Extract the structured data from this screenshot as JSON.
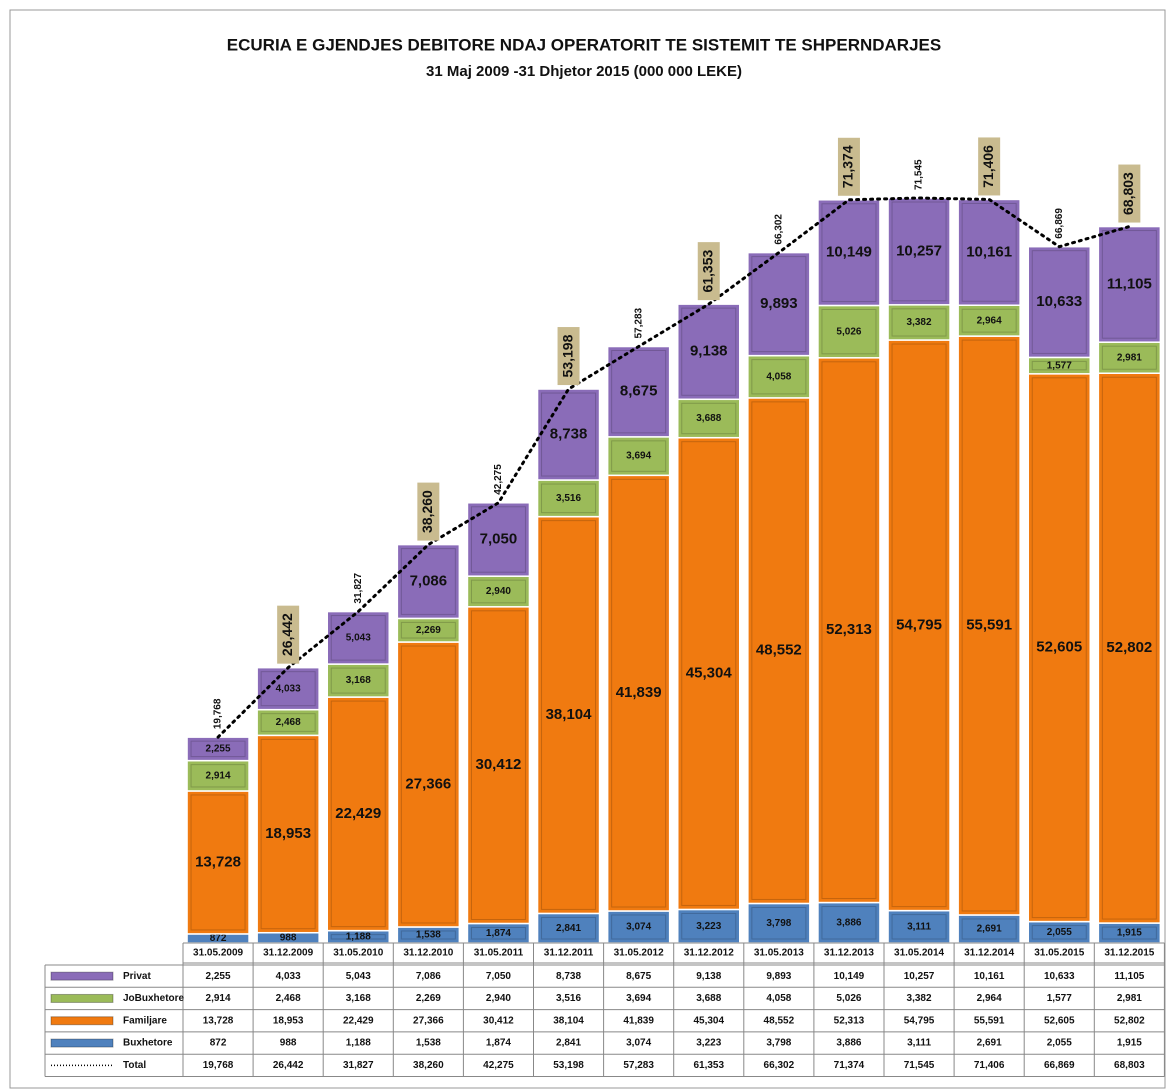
{
  "chart_data": {
    "type": "bar",
    "title": "ECURIA E GJENDJES DEBITORE NDAJ  OPERATORIT TE SISTEMIT TE SHPERNDARJES",
    "subtitle": "31 Maj 2009 -31 Dhjetor 2015    (000 000 LEKE)",
    "stacked": true,
    "categories": [
      "31.05.2009",
      "31.12.2009",
      "31.05.2010",
      "31.12.2010",
      "31.05.2011",
      "31.12.2011",
      "31.05.2012",
      "31.12.2012",
      "31.05.2013",
      "31.12.2013",
      "31.05.2014",
      "31.12.2014",
      "31.05.2015",
      "31.12.2015"
    ],
    "series": [
      {
        "name": "Privat",
        "color": "#8a6cb8",
        "values": [
          2255,
          4033,
          5043,
          7086,
          7050,
          8738,
          8675,
          9138,
          9893,
          10149,
          10257,
          10161,
          10633,
          11105
        ],
        "value_labels": [
          "2,255",
          "4,033",
          "5,043",
          "7,086",
          "7,050",
          "8,738",
          "8,675",
          "9,138",
          "9,893",
          "10,149",
          "10,257",
          "10,161",
          "10,633",
          "11,105"
        ]
      },
      {
        "name": "JoBuxhetore",
        "color": "#9bbb59",
        "values": [
          2914,
          2468,
          3168,
          2269,
          2940,
          3516,
          3694,
          3688,
          4058,
          5026,
          3382,
          2964,
          1577,
          2981
        ],
        "value_labels": [
          "2,914",
          "2,468",
          "3,168",
          "2,269",
          "2,940",
          "3,516",
          "3,694",
          "3,688",
          "4,058",
          "5,026",
          "3,382",
          "2,964",
          "1,577",
          "2,981"
        ]
      },
      {
        "name": "Familjare",
        "color": "#f07a10",
        "values": [
          13728,
          18953,
          22429,
          27366,
          30412,
          38104,
          41839,
          45304,
          48552,
          52313,
          54795,
          55591,
          52605,
          52802
        ],
        "value_labels": [
          "13,728",
          "18,953",
          "22,429",
          "27,366",
          "30,412",
          "38,104",
          "41,839",
          "45,304",
          "48,552",
          "52,313",
          "54,795",
          "55,591",
          "52,605",
          "52,802"
        ]
      },
      {
        "name": "Buxhetore",
        "color": "#4f81bd",
        "values": [
          872,
          988,
          1188,
          1538,
          1874,
          2841,
          3074,
          3223,
          3798,
          3886,
          3111,
          2691,
          2055,
          1915
        ],
        "value_labels": [
          "872",
          "988",
          "1,188",
          "1,538",
          "1,874",
          "2,841",
          "3,074",
          "3,223",
          "3,798",
          "3,886",
          "3,111",
          "2,691",
          "2,055",
          "1,915"
        ]
      },
      {
        "name": "Total",
        "type": "line",
        "color": "#000000",
        "values": [
          19768,
          26442,
          31827,
          38260,
          42275,
          53198,
          57283,
          61353,
          66302,
          71374,
          71545,
          71406,
          66869,
          68803
        ],
        "value_labels": [
          "19,768",
          "26,442",
          "31,827",
          "38,260",
          "42,275",
          "53,198",
          "57,283",
          "61,353",
          "66,302",
          "71,374",
          "71,545",
          "71,406",
          "66,869",
          "68,803"
        ]
      }
    ]
  }
}
